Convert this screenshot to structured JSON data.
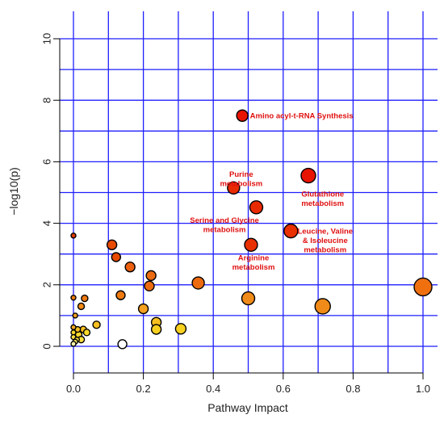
{
  "chart_data": {
    "type": "scatter",
    "title": "",
    "xlabel": "Pathway Impact",
    "ylabel": "−log10(p)",
    "xlim": [
      0,
      1.0
    ],
    "ylim": [
      0,
      10
    ],
    "x_ticks": [
      "0.0",
      "0.2",
      "0.4",
      "0.6",
      "0.8",
      "1.0"
    ],
    "y_ticks": [
      "0",
      "2",
      "4",
      "6",
      "8",
      "10"
    ],
    "grid": true,
    "grid_color": "#1f1fff",
    "points": [
      {
        "x": 0.483,
        "y": 7.5,
        "size": 14,
        "color": "#e81400"
      },
      {
        "x": 0.672,
        "y": 5.55,
        "size": 18,
        "color": "#e81400"
      },
      {
        "x": 0.458,
        "y": 5.15,
        "size": 15,
        "color": "#e92a00"
      },
      {
        "x": 0.523,
        "y": 4.52,
        "size": 16,
        "color": "#e92a00"
      },
      {
        "x": 0.622,
        "y": 3.75,
        "size": 17,
        "color": "#e83000"
      },
      {
        "x": 0.508,
        "y": 3.3,
        "size": 16,
        "color": "#e83000"
      },
      {
        "x": 0.0,
        "y": 3.6,
        "size": 6,
        "color": "#e03a00"
      },
      {
        "x": 0.11,
        "y": 3.3,
        "size": 12,
        "color": "#e84a00"
      },
      {
        "x": 0.122,
        "y": 2.9,
        "size": 11,
        "color": "#e84a00"
      },
      {
        "x": 0.162,
        "y": 2.58,
        "size": 12,
        "color": "#ec6010"
      },
      {
        "x": 0.222,
        "y": 2.3,
        "size": 12,
        "color": "#ec6a10"
      },
      {
        "x": 0.357,
        "y": 2.06,
        "size": 15,
        "color": "#ec6a10"
      },
      {
        "x": 0.217,
        "y": 1.96,
        "size": 12,
        "color": "#ec6a10"
      },
      {
        "x": 1.0,
        "y": 1.93,
        "size": 22,
        "color": "#f07010"
      },
      {
        "x": 0.135,
        "y": 1.66,
        "size": 11,
        "color": "#ee7a10"
      },
      {
        "x": 0.5,
        "y": 1.56,
        "size": 16,
        "color": "#f08a18"
      },
      {
        "x": 0.0,
        "y": 1.58,
        "size": 6,
        "color": "#f07a10"
      },
      {
        "x": 0.032,
        "y": 1.56,
        "size": 8,
        "color": "#f07a10"
      },
      {
        "x": 0.022,
        "y": 1.3,
        "size": 8,
        "color": "#f08a18"
      },
      {
        "x": 0.713,
        "y": 1.3,
        "size": 19,
        "color": "#f08a18"
      },
      {
        "x": 0.2,
        "y": 1.22,
        "size": 12,
        "color": "#f5a020"
      },
      {
        "x": 0.005,
        "y": 1.0,
        "size": 6,
        "color": "#f5a020"
      },
      {
        "x": 0.237,
        "y": 0.78,
        "size": 12,
        "color": "#f8c020"
      },
      {
        "x": 0.066,
        "y": 0.7,
        "size": 9,
        "color": "#f8c020"
      },
      {
        "x": 0.307,
        "y": 0.57,
        "size": 13,
        "color": "#f8d020"
      },
      {
        "x": 0.237,
        "y": 0.55,
        "size": 12,
        "color": "#f8d020"
      },
      {
        "x": 0.0,
        "y": 0.62,
        "size": 6,
        "color": "#f5a820"
      },
      {
        "x": 0.012,
        "y": 0.55,
        "size": 7,
        "color": "#f8c020"
      },
      {
        "x": 0.028,
        "y": 0.55,
        "size": 8,
        "color": "#f8c020"
      },
      {
        "x": 0.038,
        "y": 0.45,
        "size": 8,
        "color": "#fcd82a"
      },
      {
        "x": 0.0,
        "y": 0.45,
        "size": 6,
        "color": "#fcd82a"
      },
      {
        "x": 0.015,
        "y": 0.38,
        "size": 8,
        "color": "#fcd82a"
      },
      {
        "x": 0.0,
        "y": 0.3,
        "size": 6,
        "color": "#fce040"
      },
      {
        "x": 0.022,
        "y": 0.22,
        "size": 8,
        "color": "#fce040"
      },
      {
        "x": 0.01,
        "y": 0.22,
        "size": 6,
        "color": "#fce040"
      },
      {
        "x": 0.005,
        "y": 0.15,
        "size": 6,
        "color": "#fce860"
      },
      {
        "x": 0.0,
        "y": 0.08,
        "size": 6,
        "color": "#fff6b0"
      },
      {
        "x": 0.14,
        "y": 0.07,
        "size": 11,
        "color": "#ffffff"
      }
    ],
    "annotations": [
      {
        "lines": [
          "Amino acyl-t-RNA Synthesis"
        ],
        "x": 0.505,
        "y": 7.5,
        "anchor": "start"
      },
      {
        "lines": [
          "Purine",
          "metabolism"
        ],
        "x": 0.48,
        "y": 5.6,
        "anchor": "middle"
      },
      {
        "lines": [
          "Glutathione",
          "metabolism"
        ],
        "x": 0.713,
        "y": 4.95,
        "anchor": "middle"
      },
      {
        "lines": [
          "Serine and Glycine",
          "metabolism"
        ],
        "x": 0.432,
        "y": 4.1,
        "anchor": "middle"
      },
      {
        "lines": [
          "Leucine, Valine",
          "& Isoleucine",
          "metabolism"
        ],
        "x": 0.72,
        "y": 3.75,
        "anchor": "middle"
      },
      {
        "lines": [
          "Arginine",
          "metabolism"
        ],
        "x": 0.515,
        "y": 2.88,
        "anchor": "middle"
      }
    ]
  }
}
